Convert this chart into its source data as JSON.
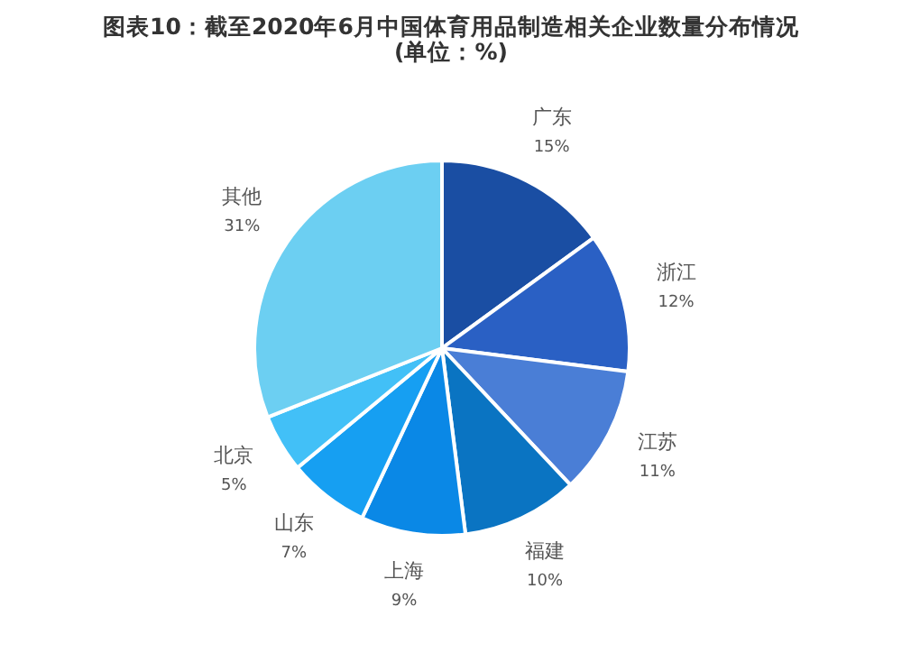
{
  "chart_data": {
    "type": "pie",
    "title": "图表10：截至2020年6月中国体育用品制造相关企业数量分布情况(单位：%)",
    "categories": [
      "广东",
      "浙江",
      "江苏",
      "福建",
      "上海",
      "山东",
      "北京",
      "其他"
    ],
    "values": [
      15,
      12,
      11,
      10,
      9,
      7,
      5,
      31
    ],
    "value_labels": [
      "15%",
      "12%",
      "11%",
      "10%",
      "9%",
      "7%",
      "5%",
      "31%"
    ],
    "colors": [
      "#1a4ea3",
      "#2a60c4",
      "#4a7ed6",
      "#0a74c2",
      "#0a88e6",
      "#169ff2",
      "#42c0f7",
      "#6ccff2"
    ],
    "legend": false
  }
}
